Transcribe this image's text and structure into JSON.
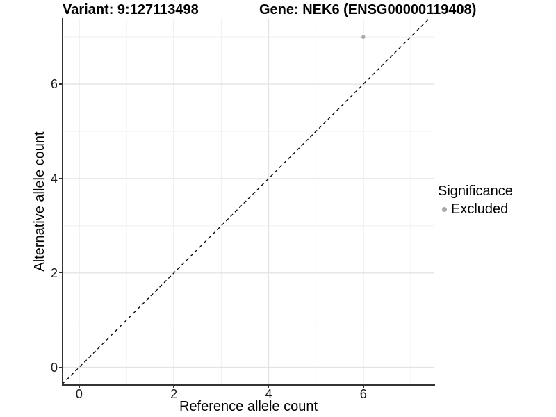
{
  "figure": {
    "title_left": "Variant: 9:127113498",
    "title_right": "Gene: NEK6 (ENSG00000119408)"
  },
  "chart_data": {
    "type": "scatter",
    "title": "Variant: 9:127113498 | Gene: NEK6 (ENSG00000119408)",
    "xlabel": "Reference allele count",
    "ylabel": "Alternative allele count",
    "xlim": [
      -0.35,
      7.5
    ],
    "ylim": [
      -0.36,
      7.4
    ],
    "x_ticks": [
      0,
      2,
      4,
      6
    ],
    "y_ticks": [
      0,
      2,
      4,
      6
    ],
    "x_minor_gridlines": [
      1,
      3,
      5,
      7
    ],
    "y_minor_gridlines": [
      1,
      3,
      5,
      7
    ],
    "grid": "on",
    "reference_line": {
      "description": "identity line y = x",
      "from": -0.36,
      "to": 7.5,
      "style": "dashed",
      "color": "#000000"
    },
    "series": [
      {
        "name": "Excluded",
        "color": "#a9a9a9",
        "points": [
          {
            "x": 6,
            "y": 7
          }
        ]
      }
    ],
    "legend": {
      "title": "Significance",
      "position": "right",
      "entries": [
        {
          "label": "Excluded",
          "color": "#a9a9a9"
        }
      ]
    },
    "colors": {
      "major_grid": "#e3e3e3",
      "minor_grid": "#efefef",
      "axis_line": "#333333",
      "point": "#a9a9a9"
    }
  }
}
